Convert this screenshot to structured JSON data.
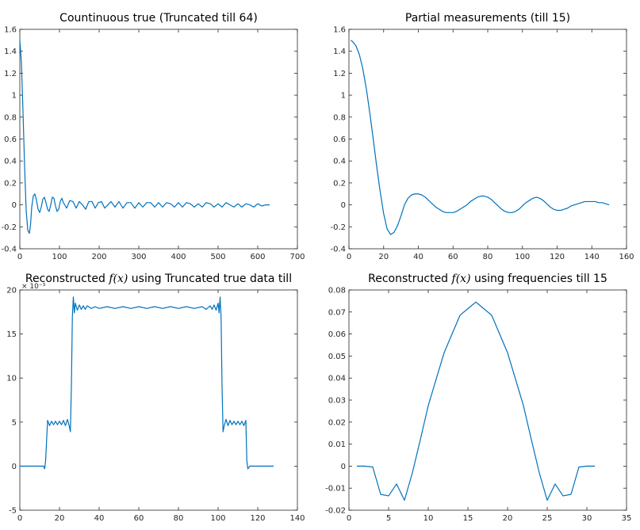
{
  "figure": {
    "line_color": "#0072BD",
    "axis_color": "#262626"
  },
  "chart_data": [
    {
      "type": "line",
      "title": "Countinuous true (Truncated till 64)",
      "xlim": [
        0,
        700
      ],
      "ylim": [
        -0.4,
        1.6
      ],
      "xticks": [
        0,
        100,
        200,
        300,
        400,
        500,
        600,
        700
      ],
      "yticks": [
        -0.4,
        -0.2,
        0,
        0.2,
        0.4,
        0.6,
        0.8,
        1,
        1.2,
        1.4,
        1.6
      ],
      "xtick_labels": [
        "0",
        "100",
        "200",
        "300",
        "400",
        "500",
        "600",
        "700"
      ],
      "ytick_labels": [
        "-0.4",
        "-0.2",
        "0",
        "0.2",
        "0.4",
        "0.6",
        "0.8",
        "1",
        "1.2",
        "1.4",
        "1.6"
      ],
      "exponent_label": "",
      "series": [
        {
          "x": [
            0,
            4,
            8,
            12,
            16,
            20,
            24,
            27,
            30,
            34,
            38,
            42,
            46,
            50,
            54,
            58,
            62,
            66,
            70,
            74,
            78,
            82,
            86,
            90,
            94,
            98,
            102,
            106,
            110,
            118,
            126,
            134,
            142,
            150,
            158,
            166,
            174,
            182,
            190,
            198,
            206,
            214,
            222,
            230,
            240,
            250,
            260,
            270,
            280,
            290,
            300,
            310,
            320,
            330,
            340,
            350,
            360,
            370,
            380,
            390,
            400,
            410,
            420,
            430,
            440,
            450,
            460,
            470,
            480,
            490,
            500,
            510,
            520,
            530,
            540,
            550,
            560,
            570,
            580,
            590,
            600,
            610,
            620,
            630
          ],
          "y": [
            1.5,
            1.3,
            0.85,
            0.35,
            -0.05,
            -0.23,
            -0.26,
            -0.18,
            -0.02,
            0.08,
            0.1,
            0.04,
            -0.04,
            -0.07,
            -0.02,
            0.05,
            0.07,
            0.02,
            -0.04,
            -0.06,
            0.0,
            0.07,
            0.06,
            -0.01,
            -0.06,
            -0.04,
            0.03,
            0.06,
            0.02,
            -0.03,
            0.04,
            0.03,
            -0.03,
            0.03,
            0.0,
            -0.04,
            0.03,
            0.03,
            -0.03,
            0.02,
            0.03,
            -0.03,
            0.0,
            0.03,
            -0.02,
            0.03,
            -0.03,
            0.02,
            0.02,
            -0.03,
            0.02,
            -0.02,
            0.02,
            0.02,
            -0.02,
            0.02,
            -0.02,
            0.02,
            0.01,
            -0.02,
            0.02,
            -0.02,
            0.02,
            0.01,
            -0.02,
            0.01,
            -0.02,
            0.02,
            0.01,
            -0.02,
            0.01,
            -0.02,
            0.02,
            0.0,
            -0.02,
            0.01,
            -0.02,
            0.01,
            0.0,
            -0.02,
            0.01,
            -0.01,
            0.0,
            0.0
          ]
        }
      ]
    },
    {
      "type": "line",
      "title": "Partial measurements (till 15)",
      "xlim": [
        0,
        160
      ],
      "ylim": [
        -0.4,
        1.6
      ],
      "xticks": [
        0,
        20,
        40,
        60,
        80,
        100,
        120,
        140,
        160
      ],
      "yticks": [
        -0.4,
        -0.2,
        0,
        0.2,
        0.4,
        0.6,
        0.8,
        1,
        1.2,
        1.4,
        1.6
      ],
      "xtick_labels": [
        "0",
        "20",
        "40",
        "60",
        "80",
        "100",
        "120",
        "140",
        "160"
      ],
      "ytick_labels": [
        "-0.4",
        "-0.2",
        "0",
        "0.2",
        "0.4",
        "0.6",
        "0.8",
        "1",
        "1.2",
        "1.4",
        "1.6"
      ],
      "exponent_label": "",
      "series": [
        {
          "x": [
            1,
            2,
            4,
            6,
            8,
            10,
            12,
            14,
            16,
            18,
            20,
            22,
            24,
            26,
            28,
            30,
            32,
            34,
            36,
            38,
            40,
            42,
            44,
            46,
            48,
            50,
            52,
            54,
            56,
            58,
            60,
            62,
            64,
            66,
            68,
            70,
            72,
            74,
            76,
            78,
            80,
            82,
            84,
            86,
            88,
            90,
            92,
            94,
            96,
            98,
            100,
            102,
            104,
            106,
            108,
            110,
            112,
            114,
            116,
            118,
            120,
            122,
            124,
            126,
            128,
            130,
            132,
            134,
            136,
            138,
            140,
            142,
            144,
            146,
            148,
            150
          ],
          "y": [
            1.5,
            1.49,
            1.45,
            1.37,
            1.24,
            1.06,
            0.84,
            0.6,
            0.35,
            0.12,
            -0.08,
            -0.22,
            -0.27,
            -0.25,
            -0.19,
            -0.1,
            0.0,
            0.06,
            0.09,
            0.1,
            0.1,
            0.09,
            0.07,
            0.04,
            0.01,
            -0.02,
            -0.04,
            -0.06,
            -0.07,
            -0.07,
            -0.07,
            -0.06,
            -0.04,
            -0.02,
            0.0,
            0.03,
            0.05,
            0.07,
            0.08,
            0.08,
            0.07,
            0.05,
            0.02,
            -0.01,
            -0.04,
            -0.06,
            -0.07,
            -0.07,
            -0.06,
            -0.04,
            -0.01,
            0.02,
            0.04,
            0.06,
            0.07,
            0.06,
            0.04,
            0.01,
            -0.02,
            -0.04,
            -0.05,
            -0.05,
            -0.04,
            -0.03,
            -0.01,
            0.0,
            0.01,
            0.02,
            0.03,
            0.03,
            0.03,
            0.03,
            0.02,
            0.02,
            0.01,
            0.0
          ]
        }
      ]
    },
    {
      "type": "line",
      "title": "Reconstructed f(x) using Truncated true data till",
      "xlim": [
        0,
        140
      ],
      "ylim": [
        -5,
        20
      ],
      "xticks": [
        0,
        20,
        40,
        60,
        80,
        100,
        120,
        140
      ],
      "yticks": [
        -5,
        0,
        5,
        10,
        15,
        20
      ],
      "xtick_labels": [
        "0",
        "20",
        "40",
        "60",
        "80",
        "100",
        "120",
        "140"
      ],
      "ytick_labels": [
        "-5",
        "0",
        "5",
        "10",
        "15",
        "20"
      ],
      "exponent_label": "× 10⁻³",
      "series": [
        {
          "x": [
            0,
            2,
            4,
            6,
            8,
            10,
            12,
            12.5,
            13,
            14,
            15,
            16,
            17,
            18,
            19,
            20,
            21,
            22,
            23,
            24,
            25,
            25.5,
            26,
            26.5,
            27,
            27.5,
            28,
            29,
            30,
            31,
            32,
            33,
            34,
            36,
            38,
            40,
            44,
            48,
            52,
            56,
            60,
            64,
            68,
            72,
            76,
            80,
            84,
            88,
            92,
            94,
            96,
            97,
            98,
            99,
            100,
            100.5,
            101,
            101.5,
            102,
            102.5,
            103,
            104,
            105,
            106,
            107,
            108,
            109,
            110,
            111,
            112,
            113,
            114,
            114.5,
            115,
            116,
            118,
            120,
            122,
            124,
            126,
            128
          ],
          "y": [
            0,
            0,
            0,
            0,
            0,
            0,
            0,
            -0.3,
            0.6,
            5.2,
            4.6,
            5.1,
            4.7,
            5.1,
            4.7,
            5.1,
            4.7,
            5.2,
            4.6,
            5.3,
            4.5,
            3.9,
            9.0,
            17.0,
            19.2,
            17.4,
            18.5,
            17.7,
            18.3,
            17.8,
            18.2,
            17.8,
            18.2,
            17.9,
            18.1,
            17.9,
            18.1,
            17.9,
            18.1,
            17.9,
            18.1,
            17.9,
            18.1,
            17.9,
            18.1,
            17.9,
            18.1,
            17.9,
            18.1,
            17.8,
            18.2,
            17.8,
            18.3,
            17.7,
            18.5,
            17.4,
            19.2,
            17.0,
            9.0,
            3.9,
            4.5,
            5.3,
            4.6,
            5.2,
            4.7,
            5.1,
            4.7,
            5.1,
            4.7,
            5.1,
            4.6,
            5.2,
            0.6,
            -0.3,
            0,
            0,
            0,
            0,
            0,
            0,
            0
          ]
        }
      ]
    },
    {
      "type": "line",
      "title": "Reconstructed f(x) using frequencies till 15",
      "xlim": [
        0,
        35
      ],
      "ylim": [
        -0.02,
        0.08
      ],
      "xticks": [
        0,
        5,
        10,
        15,
        20,
        25,
        30,
        35
      ],
      "yticks": [
        -0.02,
        -0.01,
        0,
        0.01,
        0.02,
        0.03,
        0.04,
        0.05,
        0.06,
        0.07,
        0.08
      ],
      "xtick_labels": [
        "0",
        "5",
        "10",
        "15",
        "20",
        "25",
        "30",
        "35"
      ],
      "ytick_labels": [
        "-0.02",
        "-0.01",
        "0",
        "0.01",
        "0.02",
        "0.03",
        "0.04",
        "0.05",
        "0.06",
        "0.07",
        "0.08"
      ],
      "exponent_label": "",
      "series": [
        {
          "x": [
            1,
            2,
            3,
            4,
            5,
            6,
            7,
            8,
            9,
            10,
            11,
            12,
            13,
            14,
            15,
            16,
            17,
            18,
            19,
            20,
            21,
            22,
            23,
            24,
            25,
            26,
            27,
            28,
            29,
            30,
            31
          ],
          "y": [
            0.0,
            0.0,
            -0.0004,
            -0.0128,
            -0.0135,
            -0.0081,
            -0.0155,
            -0.003,
            0.012,
            0.0275,
            0.0395,
            0.0515,
            0.06,
            0.0685,
            0.0715,
            0.0745,
            0.0715,
            0.0685,
            0.06,
            0.0515,
            0.0395,
            0.0275,
            0.012,
            -0.003,
            -0.0155,
            -0.0081,
            -0.0135,
            -0.0128,
            -0.0004,
            0.0,
            0.0
          ]
        }
      ]
    }
  ]
}
